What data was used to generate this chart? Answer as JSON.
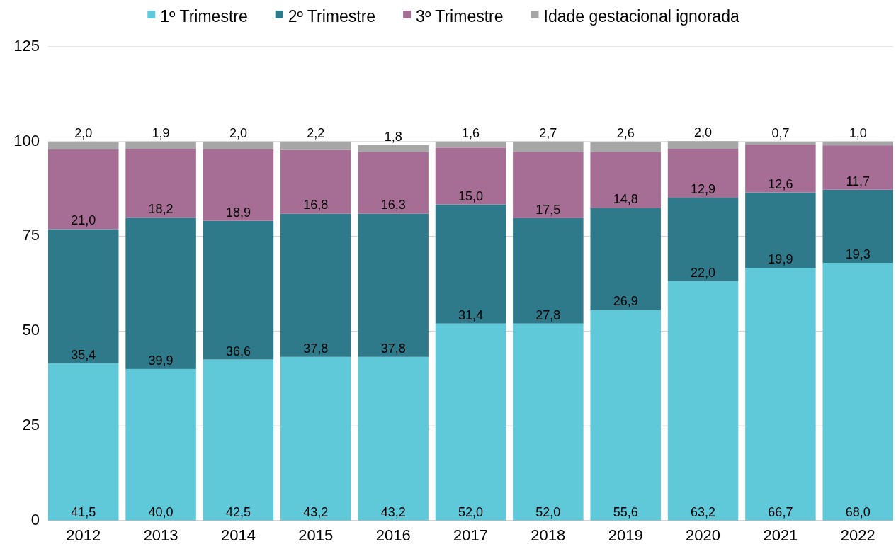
{
  "chart_data": {
    "type": "bar",
    "stacked": true,
    "categories": [
      "2012",
      "2013",
      "2014",
      "2015",
      "2016",
      "2017",
      "2018",
      "2019",
      "2020",
      "2021",
      "2022"
    ],
    "series": [
      {
        "name": "1º Trimestre",
        "color": "#5fc9da",
        "values": [
          41.5,
          40.0,
          42.5,
          43.2,
          43.2,
          52.0,
          52.0,
          55.6,
          63.2,
          66.7,
          68.0
        ],
        "value_labels": [
          "41,5",
          "40,0",
          "42,5",
          "43,2",
          "43,2",
          "52,0",
          "52,0",
          "55,6",
          "63,2",
          "66,7",
          "68,0"
        ]
      },
      {
        "name": "2º Trimestre",
        "color": "#2f7a8a",
        "values": [
          35.4,
          39.9,
          36.6,
          37.8,
          37.8,
          31.4,
          27.8,
          26.9,
          22.0,
          19.9,
          19.3
        ],
        "value_labels": [
          "35,4",
          "39,9",
          "36,6",
          "37,8",
          "37,8",
          "31,4",
          "27,8",
          "26,9",
          "22,0",
          "19,9",
          "19,3"
        ]
      },
      {
        "name": "3º Trimestre",
        "color": "#a66d95",
        "values": [
          21.0,
          18.2,
          18.9,
          16.8,
          16.3,
          15.0,
          17.5,
          14.8,
          12.9,
          12.6,
          11.7
        ],
        "value_labels": [
          "21,0",
          "18,2",
          "18,9",
          "16,8",
          "16,3",
          "15,0",
          "17,5",
          "14,8",
          "12,9",
          "12,6",
          "11,7"
        ]
      },
      {
        "name": "Idade gestacional ignorada",
        "color": "#a6a6a6",
        "values": [
          2.0,
          1.9,
          2.0,
          2.2,
          1.8,
          1.6,
          2.7,
          2.6,
          2.0,
          0.7,
          1.0
        ],
        "value_labels": [
          "2,0",
          "1,9",
          "2,0",
          "2,2",
          "1,8",
          "1,6",
          "2,7",
          "2,6",
          "2,0",
          "0,7",
          "1,0"
        ]
      }
    ],
    "ylim": [
      0,
      125
    ],
    "yticks": [
      0,
      25,
      50,
      75,
      100,
      125
    ],
    "grid": "y",
    "legend": "top"
  }
}
